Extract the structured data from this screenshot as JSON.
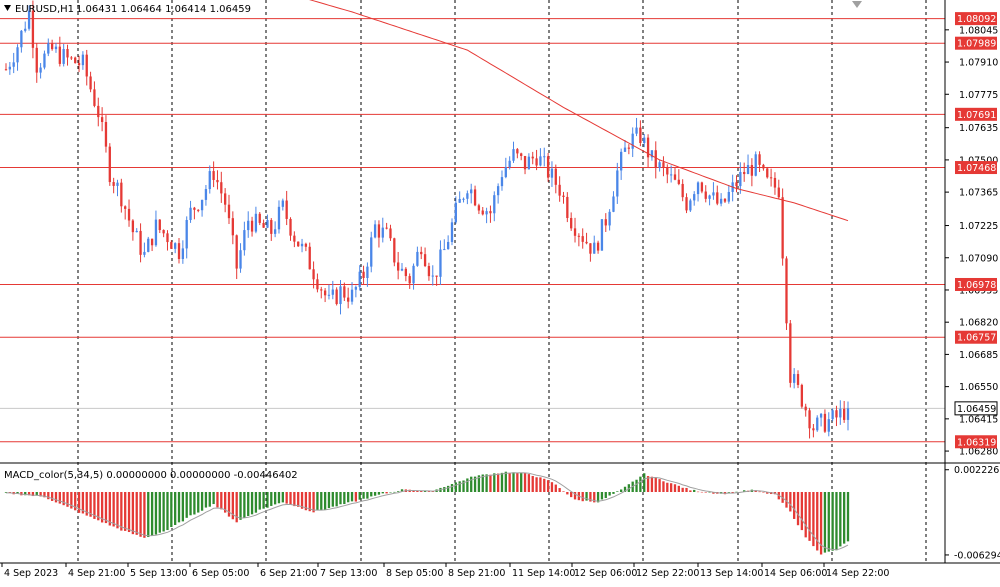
{
  "header": {
    "symbol": "EURUSD,H1",
    "ohlc": "1.06431 1.06464 1.06414 1.06459"
  },
  "macd_label": "MACD_color(5,34,5) 0.00000000 0.00000000 -0.00446402",
  "colors": {
    "bull": "#4a86e8",
    "bear": "#e53935",
    "level": "#e53935",
    "ma": "#e53935",
    "hist_pos": "#2e8b2e",
    "hist_neg": "#e53935",
    "signal": "#a0a0a0",
    "grid": "#000000",
    "current_price_line": "#c0c0c0"
  },
  "price_axis_ticks": [
    "1.08045",
    "1.07910",
    "1.07775",
    "1.07635",
    "1.07500",
    "1.07365",
    "1.07225",
    "1.07090",
    "1.06955",
    "1.06820",
    "1.06685",
    "1.06550",
    "1.06415",
    "1.06280"
  ],
  "level_labels": [
    "1.08092",
    "1.07989",
    "1.07691",
    "1.07468",
    "1.06978",
    "1.06757",
    "1.06319"
  ],
  "current_price": "1.06459",
  "macd_axis_ticks": [
    "0.0022265",
    "-0.0062942"
  ],
  "time_axis_labels": [
    "4 Sep 2023",
    "4 Sep 21:00",
    "5 Sep 13:00",
    "6 Sep 05:00",
    "6 Sep 21:00",
    "7 Sep 13:00",
    "8 Sep 05:00",
    "8 Sep 21:00",
    "11 Sep 14:00",
    "12 Sep 06:00",
    "12 Sep 22:00",
    "13 Sep 14:00",
    "14 Sep 06:00",
    "14 Sep 22:00"
  ],
  "chart_data": {
    "type": "candlestick",
    "symbol": "EURUSD",
    "timeframe": "H1",
    "ylim": [
      1.0623,
      1.0817
    ],
    "levels": [
      1.08092,
      1.07989,
      1.07691,
      1.07468,
      1.06978,
      1.06757,
      1.06319
    ],
    "waypoints": [
      [
        0,
        1.0788
      ],
      [
        3,
        1.0798
      ],
      [
        6,
        1.0812
      ],
      [
        8,
        1.079
      ],
      [
        12,
        1.0796
      ],
      [
        16,
        1.0792
      ],
      [
        20,
        1.079
      ],
      [
        24,
        1.077
      ],
      [
        27,
        1.0745
      ],
      [
        30,
        1.0735
      ],
      [
        33,
        1.072
      ],
      [
        36,
        1.071
      ],
      [
        39,
        1.0722
      ],
      [
        42,
        1.0718
      ],
      [
        45,
        1.0712
      ],
      [
        48,
        1.0728
      ],
      [
        51,
        1.0735
      ],
      [
        54,
        1.0745
      ],
      [
        57,
        1.0732
      ],
      [
        60,
        1.0705
      ],
      [
        63,
        1.0725
      ],
      [
        66,
        1.0722
      ],
      [
        69,
        1.072
      ],
      [
        72,
        1.073
      ],
      [
        75,
        1.0718
      ],
      [
        78,
        1.071
      ],
      [
        81,
        1.07
      ],
      [
        84,
        1.069
      ],
      [
        87,
        1.0695
      ],
      [
        90,
        1.0693
      ],
      [
        93,
        1.0702
      ],
      [
        96,
        1.0722
      ],
      [
        99,
        1.0718
      ],
      [
        102,
        1.0705
      ],
      [
        105,
        1.07
      ],
      [
        108,
        1.0715
      ],
      [
        111,
        1.07
      ],
      [
        114,
        1.0712
      ],
      [
        117,
        1.0728
      ],
      [
        120,
        1.074
      ],
      [
        123,
        1.0732
      ],
      [
        126,
        1.0728
      ],
      [
        129,
        1.0745
      ],
      [
        132,
        1.0752
      ],
      [
        135,
        1.0748
      ],
      [
        138,
        1.0752
      ],
      [
        141,
        1.0745
      ],
      [
        144,
        1.0738
      ],
      [
        147,
        1.0725
      ],
      [
        150,
        1.0718
      ],
      [
        153,
        1.0712
      ],
      [
        156,
        1.0725
      ],
      [
        159,
        1.0745
      ],
      [
        162,
        1.0758
      ],
      [
        165,
        1.076
      ],
      [
        168,
        1.075
      ],
      [
        171,
        1.0745
      ],
      [
        174,
        1.074
      ],
      [
        177,
        1.0732
      ],
      [
        180,
        1.0742
      ],
      [
        183,
        1.0735
      ],
      [
        186,
        1.073
      ],
      [
        189,
        1.0738
      ],
      [
        192,
        1.0745
      ],
      [
        195,
        1.0748
      ],
      [
        198,
        1.074
      ],
      [
        201,
        1.0738
      ],
      [
        204,
        1.066
      ],
      [
        207,
        1.065
      ],
      [
        210,
        1.0638
      ],
      [
        213,
        1.064
      ],
      [
        216,
        1.0642
      ],
      [
        219,
        1.0646
      ]
    ],
    "ma_waypoints": [
      [
        0,
        1.0836
      ],
      [
        30,
        1.0834
      ],
      [
        60,
        1.0826
      ],
      [
        90,
        1.0812
      ],
      [
        120,
        1.0796
      ],
      [
        145,
        1.0772
      ],
      [
        170,
        1.075
      ],
      [
        190,
        1.0738
      ],
      [
        205,
        1.0732
      ],
      [
        220,
        1.0724
      ]
    ],
    "macd_waypoints": [
      [
        0,
        -0.0001
      ],
      [
        10,
        -0.0005
      ],
      [
        20,
        -0.0022
      ],
      [
        30,
        -0.0038
      ],
      [
        36,
        -0.0046
      ],
      [
        42,
        -0.0038
      ],
      [
        48,
        -0.0024
      ],
      [
        54,
        -0.0012
      ],
      [
        60,
        -0.003
      ],
      [
        66,
        -0.0018
      ],
      [
        72,
        -0.001
      ],
      [
        80,
        -0.002
      ],
      [
        86,
        -0.0014
      ],
      [
        92,
        -0.0008
      ],
      [
        98,
        -0.0002
      ],
      [
        104,
        0.0003
      ],
      [
        110,
        0.0
      ],
      [
        116,
        0.0008
      ],
      [
        122,
        0.0016
      ],
      [
        130,
        0.002
      ],
      [
        136,
        0.0018
      ],
      [
        142,
        0.001
      ],
      [
        148,
        -0.0008
      ],
      [
        154,
        -0.001
      ],
      [
        160,
        0.0002
      ],
      [
        166,
        0.0018
      ],
      [
        172,
        0.001
      ],
      [
        178,
        0.0002
      ],
      [
        186,
        -0.0002
      ],
      [
        194,
        0.0002
      ],
      [
        200,
        -0.0003
      ],
      [
        204,
        -0.002
      ],
      [
        208,
        -0.0045
      ],
      [
        212,
        -0.0062
      ],
      [
        216,
        -0.0058
      ],
      [
        220,
        -0.0046
      ]
    ],
    "macd_ylim": [
      -0.0068,
      0.0026
    ]
  }
}
